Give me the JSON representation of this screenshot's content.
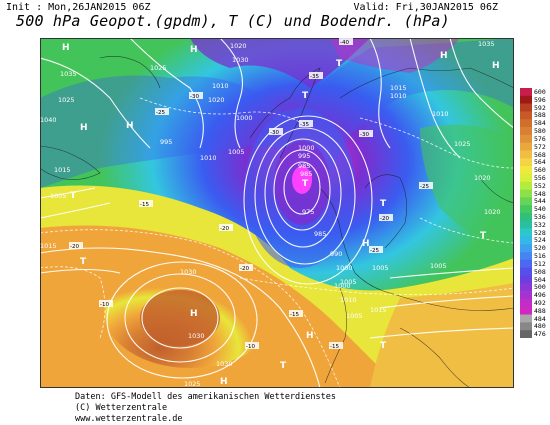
{
  "header": {
    "init": "Init : Mon,26JAN2015 06Z",
    "valid": "Valid: Fri,30JAN2015 06Z",
    "title": "500 hPa Geopot.(gpdm), T (C) und Bodendr. (hPa)"
  },
  "footer": {
    "line1": "Daten: GFS-Modell des amerikanischen Wetterdienstes",
    "line2": "(C) Wetterzentrale",
    "line3": "www.wetterzentrale.de"
  },
  "colors": {
    "low_core": "#ff40ff",
    "purple": "#7a2fd0",
    "blue": "#3a5cf0",
    "cyan": "#33c6e0",
    "green": "#43c45a",
    "yellow": "#e8e63a",
    "orange": "#f0a53a",
    "brown": "#c0602c"
  },
  "color_scale": {
    "labels": [
      "600",
      "596",
      "592",
      "588",
      "584",
      "580",
      "576",
      "572",
      "568",
      "564",
      "560",
      "556",
      "552",
      "548",
      "544",
      "540",
      "536",
      "532",
      "528",
      "524",
      "520",
      "516",
      "512",
      "508",
      "504",
      "500",
      "496",
      "492",
      "488",
      "484",
      "480",
      "476"
    ],
    "colors": [
      "#c81e4e",
      "#a01818",
      "#b84020",
      "#c85a28",
      "#d06e2c",
      "#d88034",
      "#e0923a",
      "#e8a83e",
      "#f0be42",
      "#f4d446",
      "#f0e83c",
      "#d8f03a",
      "#b4ec3e",
      "#8ee048",
      "#66d456",
      "#44c860",
      "#30c07a",
      "#28c0a0",
      "#2ac8c8",
      "#34b8e8",
      "#3ea0f0",
      "#4684f0",
      "#4c68f0",
      "#5450e8",
      "#6a40e0",
      "#8a38d8",
      "#a632d0",
      "#c02ec8",
      "#d028c0",
      "#a8a8a8",
      "#888888",
      "#666666"
    ]
  },
  "pressure_labels": [
    {
      "v": "1020"
    },
    {
      "v": "1010"
    },
    {
      "v": "1035"
    },
    {
      "v": "1025"
    },
    {
      "v": "1025"
    },
    {
      "v": "1030"
    },
    {
      "v": "1020"
    },
    {
      "v": "1000"
    },
    {
      "v": "995"
    },
    {
      "v": "1010"
    },
    {
      "v": "1005"
    },
    {
      "v": "1015"
    },
    {
      "v": "1005"
    },
    {
      "v": "1015"
    },
    {
      "v": "1000"
    },
    {
      "v": "995"
    },
    {
      "v": "985"
    },
    {
      "v": "985"
    },
    {
      "v": "975"
    },
    {
      "v": "985"
    },
    {
      "v": "990"
    },
    {
      "v": "1000"
    },
    {
      "v": "1005"
    },
    {
      "v": "1030"
    },
    {
      "v": "1030"
    },
    {
      "v": "1030"
    },
    {
      "v": "1025"
    },
    {
      "v": "1015"
    },
    {
      "v": "1010"
    },
    {
      "v": "1005"
    },
    {
      "v": "1000"
    },
    {
      "v": "1005"
    },
    {
      "v": "1010"
    },
    {
      "v": "1015"
    },
    {
      "v": "1020"
    },
    {
      "v": "1005"
    },
    {
      "v": "1010"
    },
    {
      "v": "1020"
    },
    {
      "v": "1025"
    },
    {
      "v": "1035"
    },
    {
      "v": "1040"
    }
  ],
  "temperature_labels": [
    {
      "v": "-40"
    },
    {
      "v": "-35"
    },
    {
      "v": "-30"
    },
    {
      "v": "-30"
    },
    {
      "v": "-25"
    },
    {
      "v": "-20"
    },
    {
      "v": "-20"
    },
    {
      "v": "-15"
    },
    {
      "v": "-15"
    },
    {
      "v": "-10"
    },
    {
      "v": "-25"
    },
    {
      "v": "-35"
    },
    {
      "v": "-30"
    },
    {
      "v": "-20"
    },
    {
      "v": "-25"
    },
    {
      "v": "-15"
    },
    {
      "v": "-20"
    },
    {
      "v": "-10"
    }
  ],
  "pressure_centers": [
    {
      "type": "H"
    },
    {
      "type": "H"
    },
    {
      "type": "H"
    },
    {
      "type": "H"
    },
    {
      "type": "T"
    },
    {
      "type": "T"
    },
    {
      "type": "H"
    },
    {
      "type": "H"
    },
    {
      "type": "T"
    },
    {
      "type": "T"
    },
    {
      "type": "T"
    },
    {
      "type": "T"
    },
    {
      "type": "H"
    },
    {
      "type": "H"
    },
    {
      "type": "T"
    },
    {
      "type": "H"
    },
    {
      "type": "H"
    },
    {
      "type": "T"
    },
    {
      "type": "T"
    }
  ]
}
